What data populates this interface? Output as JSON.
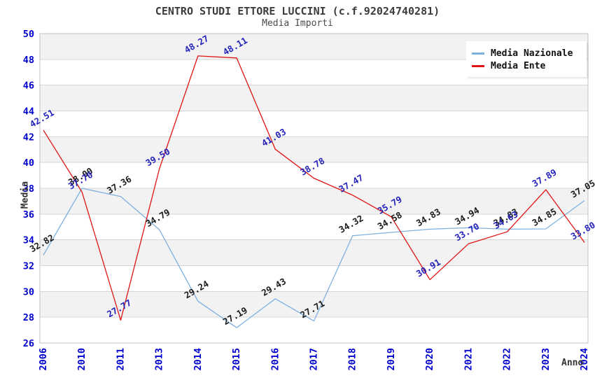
{
  "header": {
    "title": "CENTRO STUDI ETTORE LUCCINI (c.f.92024740281)",
    "subtitle": "Media Importi"
  },
  "axes": {
    "y_label": "Media",
    "x_label": "Anno",
    "tick_color": "#0000cc"
  },
  "legend": {
    "items": [
      {
        "label": "Media Nazionale",
        "color": "#7eb1e0"
      },
      {
        "label": "Media Ente",
        "color": "#e01414"
      }
    ]
  },
  "colors": {
    "band_gray": "#f2f2f2",
    "band_white": "#ffffff",
    "gridline": "#d6d6d6",
    "plot_border": "#c0c0c0",
    "nazionale_line": "#7eb1e0",
    "ente_line": "#e01414",
    "nazionale_label": "#1a1a1a",
    "ente_label": "#2323bb",
    "axis_ticks": "#0000cc",
    "title_text": "#3c3c3c"
  },
  "chart_data": {
    "type": "line",
    "title": "CENTRO STUDI ETTORE LUCCINI (c.f.92024740281)",
    "subtitle": "Media Importi",
    "xlabel": "Anno",
    "ylabel": "Media",
    "ylim": [
      26,
      50
    ],
    "ytick_step": 2,
    "grid": true,
    "banded_background": true,
    "legend_position": "top-right",
    "categories": [
      "2006",
      "2010",
      "2011",
      "2013",
      "2014",
      "2015",
      "2016",
      "2017",
      "2018",
      "2019",
      "2020",
      "2021",
      "2022",
      "2023",
      "2024"
    ],
    "series": [
      {
        "name": "Media Nazionale",
        "color": "#7eb1e0",
        "label_color": "#1a1a1a",
        "values": [
          32.82,
          38.0,
          37.36,
          34.79,
          29.24,
          27.19,
          29.43,
          27.71,
          34.32,
          34.58,
          34.83,
          34.94,
          34.83,
          34.85,
          37.05
        ]
      },
      {
        "name": "Media Ente",
        "color": "#e01414",
        "label_color": "#2323bb",
        "values": [
          42.51,
          37.7,
          27.77,
          39.5,
          48.27,
          48.11,
          41.03,
          38.78,
          37.47,
          35.79,
          30.91,
          33.7,
          34.63,
          37.89,
          33.8
        ]
      }
    ]
  }
}
